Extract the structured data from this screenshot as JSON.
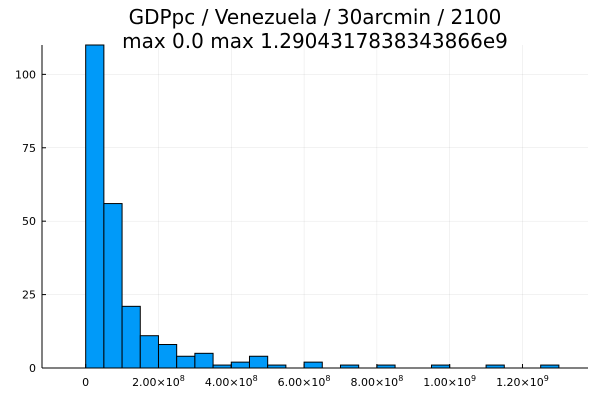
{
  "chart_data": {
    "type": "bar",
    "title_lines": [
      "GDPpc / Venezuela / 30arcmin / 2100",
      "max 0.0  max 1.2904317838343866e9"
    ],
    "xlabel": "",
    "ylabel": "",
    "bin_width": 50000000,
    "bins_start": [
      0,
      50000000,
      100000000,
      150000000,
      200000000,
      250000000,
      300000000,
      350000000,
      400000000,
      450000000,
      500000000,
      550000000,
      600000000,
      650000000,
      700000000,
      750000000,
      800000000,
      850000000,
      900000000,
      950000000,
      1000000000,
      1050000000,
      1100000000,
      1150000000,
      1200000000,
      1250000000
    ],
    "values": [
      110,
      56,
      21,
      11,
      8,
      4,
      5,
      1,
      2,
      4,
      1,
      0,
      2,
      0,
      1,
      0,
      1,
      0,
      0,
      1,
      0,
      0,
      1,
      0,
      0,
      1
    ],
    "xlim": [
      -120000000,
      1380000000
    ],
    "ylim": [
      0,
      110
    ],
    "y_ticks": [
      {
        "value": 0,
        "label": "0"
      },
      {
        "value": 25,
        "label": "25"
      },
      {
        "value": 50,
        "label": "50"
      },
      {
        "value": 75,
        "label": "75"
      },
      {
        "value": 100,
        "label": "100"
      }
    ],
    "x_ticks": [
      {
        "value": 0,
        "label": "0",
        "exp": ""
      },
      {
        "value": 200000000,
        "label": "2.00×10",
        "exp": "8"
      },
      {
        "value": 400000000,
        "label": "4.00×10",
        "exp": "8"
      },
      {
        "value": 600000000,
        "label": "6.00×10",
        "exp": "8"
      },
      {
        "value": 800000000,
        "label": "8.00×10",
        "exp": "8"
      },
      {
        "value": 1000000000,
        "label": "1.00×10",
        "exp": "9"
      },
      {
        "value": 1200000000,
        "label": "1.20×10",
        "exp": "9"
      }
    ],
    "bar_color": "#009AF9",
    "grid": true,
    "legend": "none"
  }
}
